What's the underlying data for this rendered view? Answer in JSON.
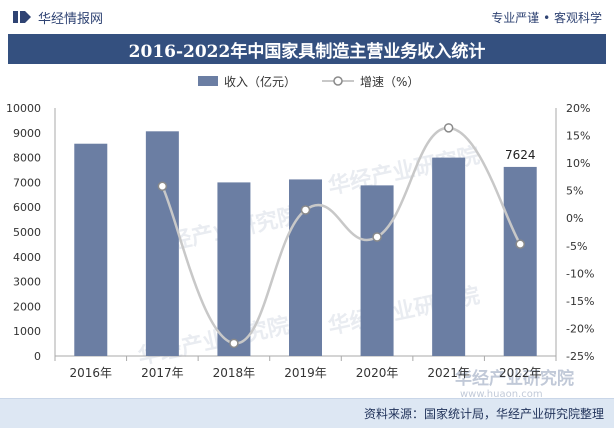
{
  "header": {
    "brand_name": "华经情报网",
    "slogan": "专业严谨 • 客观科学"
  },
  "source": "资料来源：国家统计局，华经产业研究院整理",
  "watermark": {
    "text": "华经产业研究院",
    "url": "www.huaon.com"
  },
  "colors": {
    "title_bar": "#34507f",
    "bar": "#6b7ea3",
    "line": "#c8c8c8",
    "marker_fill": "#ffffff",
    "marker_stroke": "#8a8a8a"
  },
  "chart_data": {
    "type": "bar",
    "title": "2016-2022年中国家具制造主营业务收入统计",
    "categories": [
      "2016年",
      "2017年",
      "2018年",
      "2019年",
      "2020年",
      "2021年",
      "2022年"
    ],
    "series": [
      {
        "name": "收入（亿元）",
        "type": "bar",
        "axis": "left",
        "values": [
          8560,
          9060,
          7000,
          7120,
          6880,
          8000,
          7624
        ]
      },
      {
        "name": "增速（%）",
        "type": "line",
        "axis": "right",
        "values": [
          null,
          5.8,
          -22.7,
          1.5,
          -3.4,
          16.4,
          -4.7
        ]
      }
    ],
    "data_labels": [
      {
        "category": "2022年",
        "text": "7624"
      }
    ],
    "y_left": {
      "range": [
        0,
        10000
      ],
      "ticks": [
        "0",
        "1000",
        "2000",
        "3000",
        "4000",
        "5000",
        "6000",
        "7000",
        "8000",
        "9000",
        "10000"
      ]
    },
    "y_right": {
      "range": [
        -25,
        20
      ],
      "ticks": [
        "-25%",
        "-20%",
        "-15%",
        "-10%",
        "-5%",
        "0%",
        "5%",
        "10%",
        "15%",
        "20%"
      ]
    },
    "grid": false,
    "legend": "top-center"
  }
}
